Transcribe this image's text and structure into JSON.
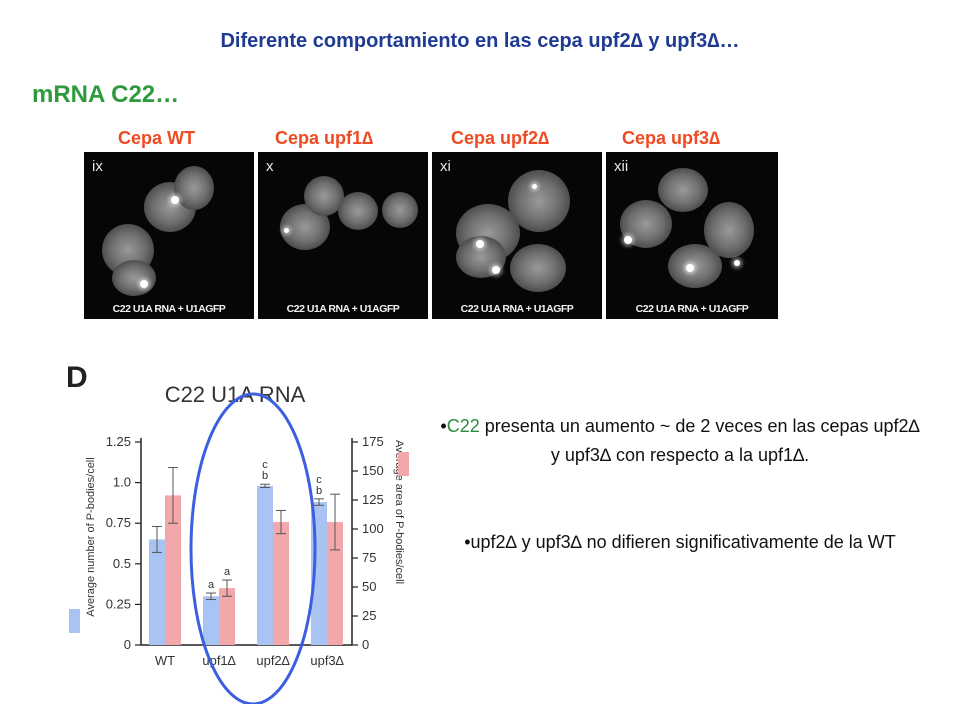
{
  "slide": {
    "title": "Diferente comportamiento en las cepa upf2∆ y upf3∆…",
    "subtitle": "mRNA C22…"
  },
  "panels": [
    {
      "strain": "Cepa WT",
      "numeral": "ix",
      "caption": "C22 U1A RNA + U1AGFP"
    },
    {
      "strain": "Cepa upf1∆",
      "numeral": "x",
      "caption": "C22 U1A RNA + U1AGFP"
    },
    {
      "strain": "Cepa upf2∆",
      "numeral": "xi",
      "caption": "C22 U1A RNA + U1AGFP"
    },
    {
      "strain": "Cepa upf3∆",
      "numeral": "xii",
      "caption": "C22 U1A RNA + U1AGFP"
    }
  ],
  "chart_data": {
    "type": "bar",
    "panel_letter": "D",
    "title": "C22 U1A RNA",
    "categories": [
      "WT",
      "upf1∆",
      "upf2∆",
      "upf3∆"
    ],
    "ylabel_left": "Average number of P-bodies/cell",
    "ylabel_right": "Average area of P-bodies/cell",
    "ylim_left": [
      0,
      1.25
    ],
    "ylim_right": [
      0,
      175
    ],
    "yticks_left": [
      "0",
      "0.25",
      "0.5",
      "0.75",
      "1.0",
      "1.25"
    ],
    "yticks_right": [
      "0",
      "25",
      "50",
      "75",
      "100",
      "125",
      "150",
      "175"
    ],
    "series": [
      {
        "axis": "left",
        "color": "#a9c4f2",
        "values": [
          0.65,
          0.3,
          0.98,
          0.88
        ],
        "errors": [
          0.08,
          0.02,
          0.01,
          0.02
        ]
      },
      {
        "axis": "right",
        "color": "#f2a7ab",
        "values": [
          129,
          49,
          106,
          106
        ],
        "errors": [
          24,
          7,
          10,
          24
        ]
      }
    ],
    "annotations": [
      {
        "category": "upf1∆",
        "series": 0,
        "labels": [
          "a"
        ]
      },
      {
        "category": "upf1∆",
        "series": 1,
        "labels": [
          "a"
        ]
      },
      {
        "category": "upf2∆",
        "series": 0,
        "labels": [
          "c",
          "b"
        ]
      },
      {
        "category": "upf3∆",
        "series": 0,
        "labels": [
          "c",
          "b"
        ]
      }
    ],
    "highlight": "ellipse around upf1∆, upf2∆, upf3∆",
    "highlight_color": "#3b5fe0"
  },
  "notes": [
    {
      "prefix": "•",
      "highlight": "C22",
      "text": " presenta un aumento ~  de 2 veces en las cepas upf2∆ y upf3∆ con respecto a la upf1∆."
    },
    {
      "prefix": "•",
      "text": "upf2∆ y upf3∆ no difieren significativamente de la WT"
    }
  ],
  "colors": {
    "title": "#1f3a93",
    "subtitle": "#2e9a3c",
    "strain": "#f04a22",
    "highlight_word": "#2e8a3e"
  }
}
